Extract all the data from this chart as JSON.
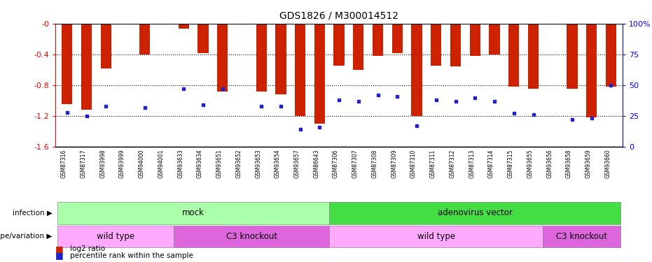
{
  "title": "GDS1826 / M300014512",
  "samples": [
    "GSM87316",
    "GSM87317",
    "GSM93998",
    "GSM93999",
    "GSM94000",
    "GSM94001",
    "GSM93633",
    "GSM93634",
    "GSM93651",
    "GSM93652",
    "GSM93653",
    "GSM93654",
    "GSM93657",
    "GSM86643",
    "GSM87306",
    "GSM87307",
    "GSM87308",
    "GSM87309",
    "GSM87310",
    "GSM87311",
    "GSM87312",
    "GSM87313",
    "GSM87314",
    "GSM87315",
    "GSM93655",
    "GSM93656",
    "GSM93658",
    "GSM93659",
    "GSM93660"
  ],
  "log2_ratio": [
    -1.05,
    -1.12,
    -0.58,
    0.0,
    -0.4,
    0.0,
    -0.07,
    -0.38,
    -0.88,
    0.0,
    -0.88,
    -0.92,
    -1.2,
    -1.3,
    -0.55,
    -0.6,
    -0.42,
    -0.38,
    -1.2,
    -0.55,
    -0.56,
    -0.42,
    -0.4,
    -0.82,
    -0.85,
    0.0,
    -0.85,
    -1.22,
    -0.82
  ],
  "percentile": [
    28,
    25,
    33,
    0,
    32,
    0,
    47,
    34,
    47,
    0,
    33,
    33,
    14,
    16,
    38,
    37,
    42,
    41,
    17,
    38,
    37,
    40,
    37,
    27,
    26,
    0,
    22,
    23,
    50
  ],
  "infection_groups": [
    {
      "label": "mock",
      "start": 0,
      "end": 13,
      "color": "#aaffaa"
    },
    {
      "label": "adenovirus vector",
      "start": 14,
      "end": 28,
      "color": "#44dd44"
    }
  ],
  "genotype_groups": [
    {
      "label": "wild type",
      "start": 0,
      "end": 5,
      "color": "#ffaaff"
    },
    {
      "label": "C3 knockout",
      "start": 6,
      "end": 13,
      "color": "#dd66dd"
    },
    {
      "label": "wild type",
      "start": 14,
      "end": 24,
      "color": "#ffaaff"
    },
    {
      "label": "C3 knockout",
      "start": 25,
      "end": 28,
      "color": "#dd66dd"
    }
  ],
  "ylim_left": [
    -1.6,
    0.0
  ],
  "ylim_right": [
    0,
    100
  ],
  "yticks_left": [
    0.0,
    -0.4,
    -0.8,
    -1.2,
    -1.6
  ],
  "yticks_right": [
    0,
    25,
    50,
    75,
    100
  ],
  "bar_color": "#cc2200",
  "blue_color": "#2222cc",
  "bg_color": "#ffffff"
}
